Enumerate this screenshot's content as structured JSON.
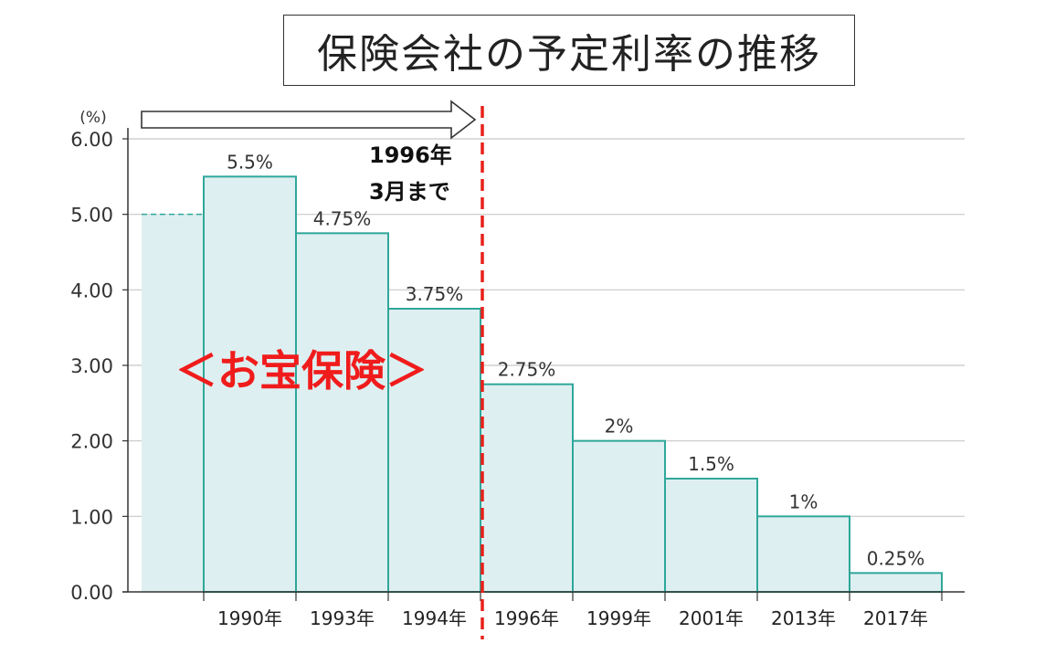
{
  "chart_data": {
    "type": "bar",
    "title": "保険会社の予定利率の推移",
    "ylabel": "(%)",
    "ylim": [
      0,
      6
    ],
    "yticks": [
      "0.00",
      "1.00",
      "2.00",
      "3.00",
      "4.00",
      "5.00",
      "6.00"
    ],
    "grid": true,
    "series": [
      {
        "values": [
          5.0,
          5.5,
          4.75,
          3.75,
          2.75,
          2.0,
          1.5,
          1.0,
          0.25
        ],
        "labels": [
          "",
          "5.5%",
          "4.75%",
          "3.75%",
          "2.75%",
          "2%",
          "1.5%",
          "1%",
          "0.25%"
        ]
      }
    ],
    "categories": [
      "",
      "1990年",
      "1993年",
      "1994年",
      "1996年",
      "1999年",
      "2001年",
      "2013年",
      "2017年"
    ],
    "annotations": {
      "cutoff_label_line1": "1996年",
      "cutoff_label_line2": "3月まで",
      "region_label": "＜お宝保険＞"
    },
    "colors": {
      "bar_fill": "#deeff1",
      "bar_stroke": "#2fa79a",
      "cutoff_line": "#e8201a",
      "region_label": "#f01c1c",
      "grid": "#c8c8c8"
    }
  }
}
